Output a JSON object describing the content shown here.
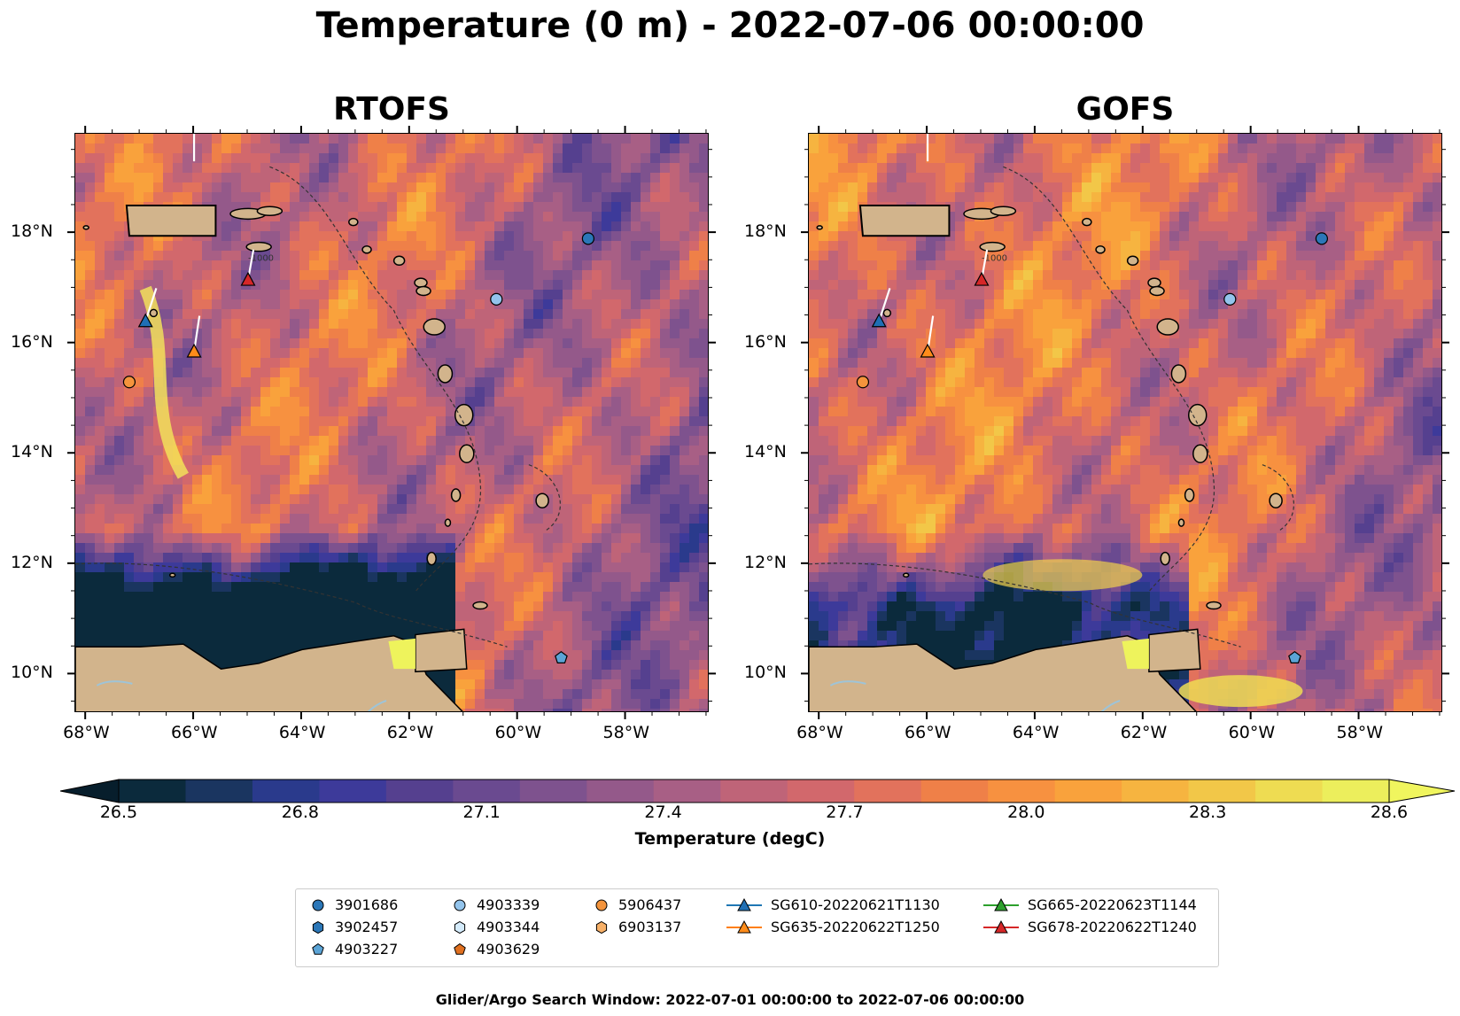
{
  "figure": {
    "title": "Temperature (0 m) - 2022-07-06 00:00:00",
    "footer": "Glider/Argo Search Window: 2022-07-01 00:00:00 to 2022-07-06 00:00:00"
  },
  "panels": [
    {
      "title": "RTOFS"
    },
    {
      "title": "GOFS"
    }
  ],
  "axes": {
    "lon_labels": [
      "68°W",
      "66°W",
      "64°W",
      "62°W",
      "60°W",
      "58°W"
    ],
    "lat_labels": [
      "18°N",
      "16°N",
      "14°N",
      "12°N",
      "10°N"
    ],
    "contour_label": "-1000"
  },
  "colorbar": {
    "label": "Temperature (degC)",
    "ticks": [
      "26.5",
      "26.8",
      "27.1",
      "27.4",
      "27.7",
      "28.0",
      "28.3",
      "28.6"
    ],
    "colors": [
      "#0b2a3c",
      "#1a3560",
      "#2a3a8c",
      "#3d3a9a",
      "#55408f",
      "#6a4a90",
      "#7e528e",
      "#94598a",
      "#a85f85",
      "#bf6478",
      "#d2686c",
      "#e2725c",
      "#ef8048",
      "#f79140",
      "#f9a23c",
      "#f6b440",
      "#f2c748",
      "#eedc52",
      "#ecee5c"
    ],
    "extend_min_color": "#071e2c",
    "extend_max_color": "#f0f55e"
  },
  "colors": {
    "land": "#d2b48c",
    "water_river": "#9ec4d8",
    "shelf": "#9bb0d9"
  },
  "legend": [
    {
      "label": "3901686",
      "marker": "circle",
      "color": "#2b77b8"
    },
    {
      "label": "3902457",
      "marker": "hexagon",
      "color": "#2b77b8"
    },
    {
      "label": "4903227",
      "marker": "pentagon",
      "color": "#5ba4d6"
    },
    {
      "label": "4903339",
      "marker": "circle",
      "color": "#93c4ec"
    },
    {
      "label": "4903344",
      "marker": "hexagon",
      "color": "#d4ebfb"
    },
    {
      "label": "4903629",
      "marker": "pentagon",
      "color": "#e07020"
    },
    {
      "label": "5906437",
      "marker": "circle",
      "color": "#f4943c"
    },
    {
      "label": "6903137",
      "marker": "hexagon",
      "color": "#f7b068"
    },
    {
      "label": "SG610-20220621T1130",
      "marker": "triangle-line",
      "color": "#1f6fb4",
      "line": "#1f77b4"
    },
    {
      "label": "SG635-20220622T1250",
      "marker": "triangle-line",
      "color": "#ff8c1a",
      "line": "#ff7f0e"
    },
    {
      "label": "SG665-20220623T1144",
      "marker": "triangle-line",
      "color": "#2ca02c",
      "line": "#2ca02c"
    },
    {
      "label": "SG678-20220622T1240",
      "marker": "triangle-line",
      "color": "#d62728",
      "line": "#d62728"
    }
  ],
  "observations": [
    {
      "id": "3901686",
      "lon": -58.7,
      "lat": 17.9
    },
    {
      "id": "4903339",
      "lon": -60.4,
      "lat": 16.8
    },
    {
      "id": "5906437",
      "lon": -67.2,
      "lat": 15.3
    },
    {
      "id": "4903227",
      "lon": -59.2,
      "lat": 10.3
    },
    {
      "id": "SG610-20220621T1130",
      "lon": -66.9,
      "lat": 16.4
    },
    {
      "id": "SG635-20220622T1250",
      "lon": -66.0,
      "lat": 15.85
    },
    {
      "id": "SG678-20220622T1240",
      "lon": -65.0,
      "lat": 17.15
    }
  ]
}
